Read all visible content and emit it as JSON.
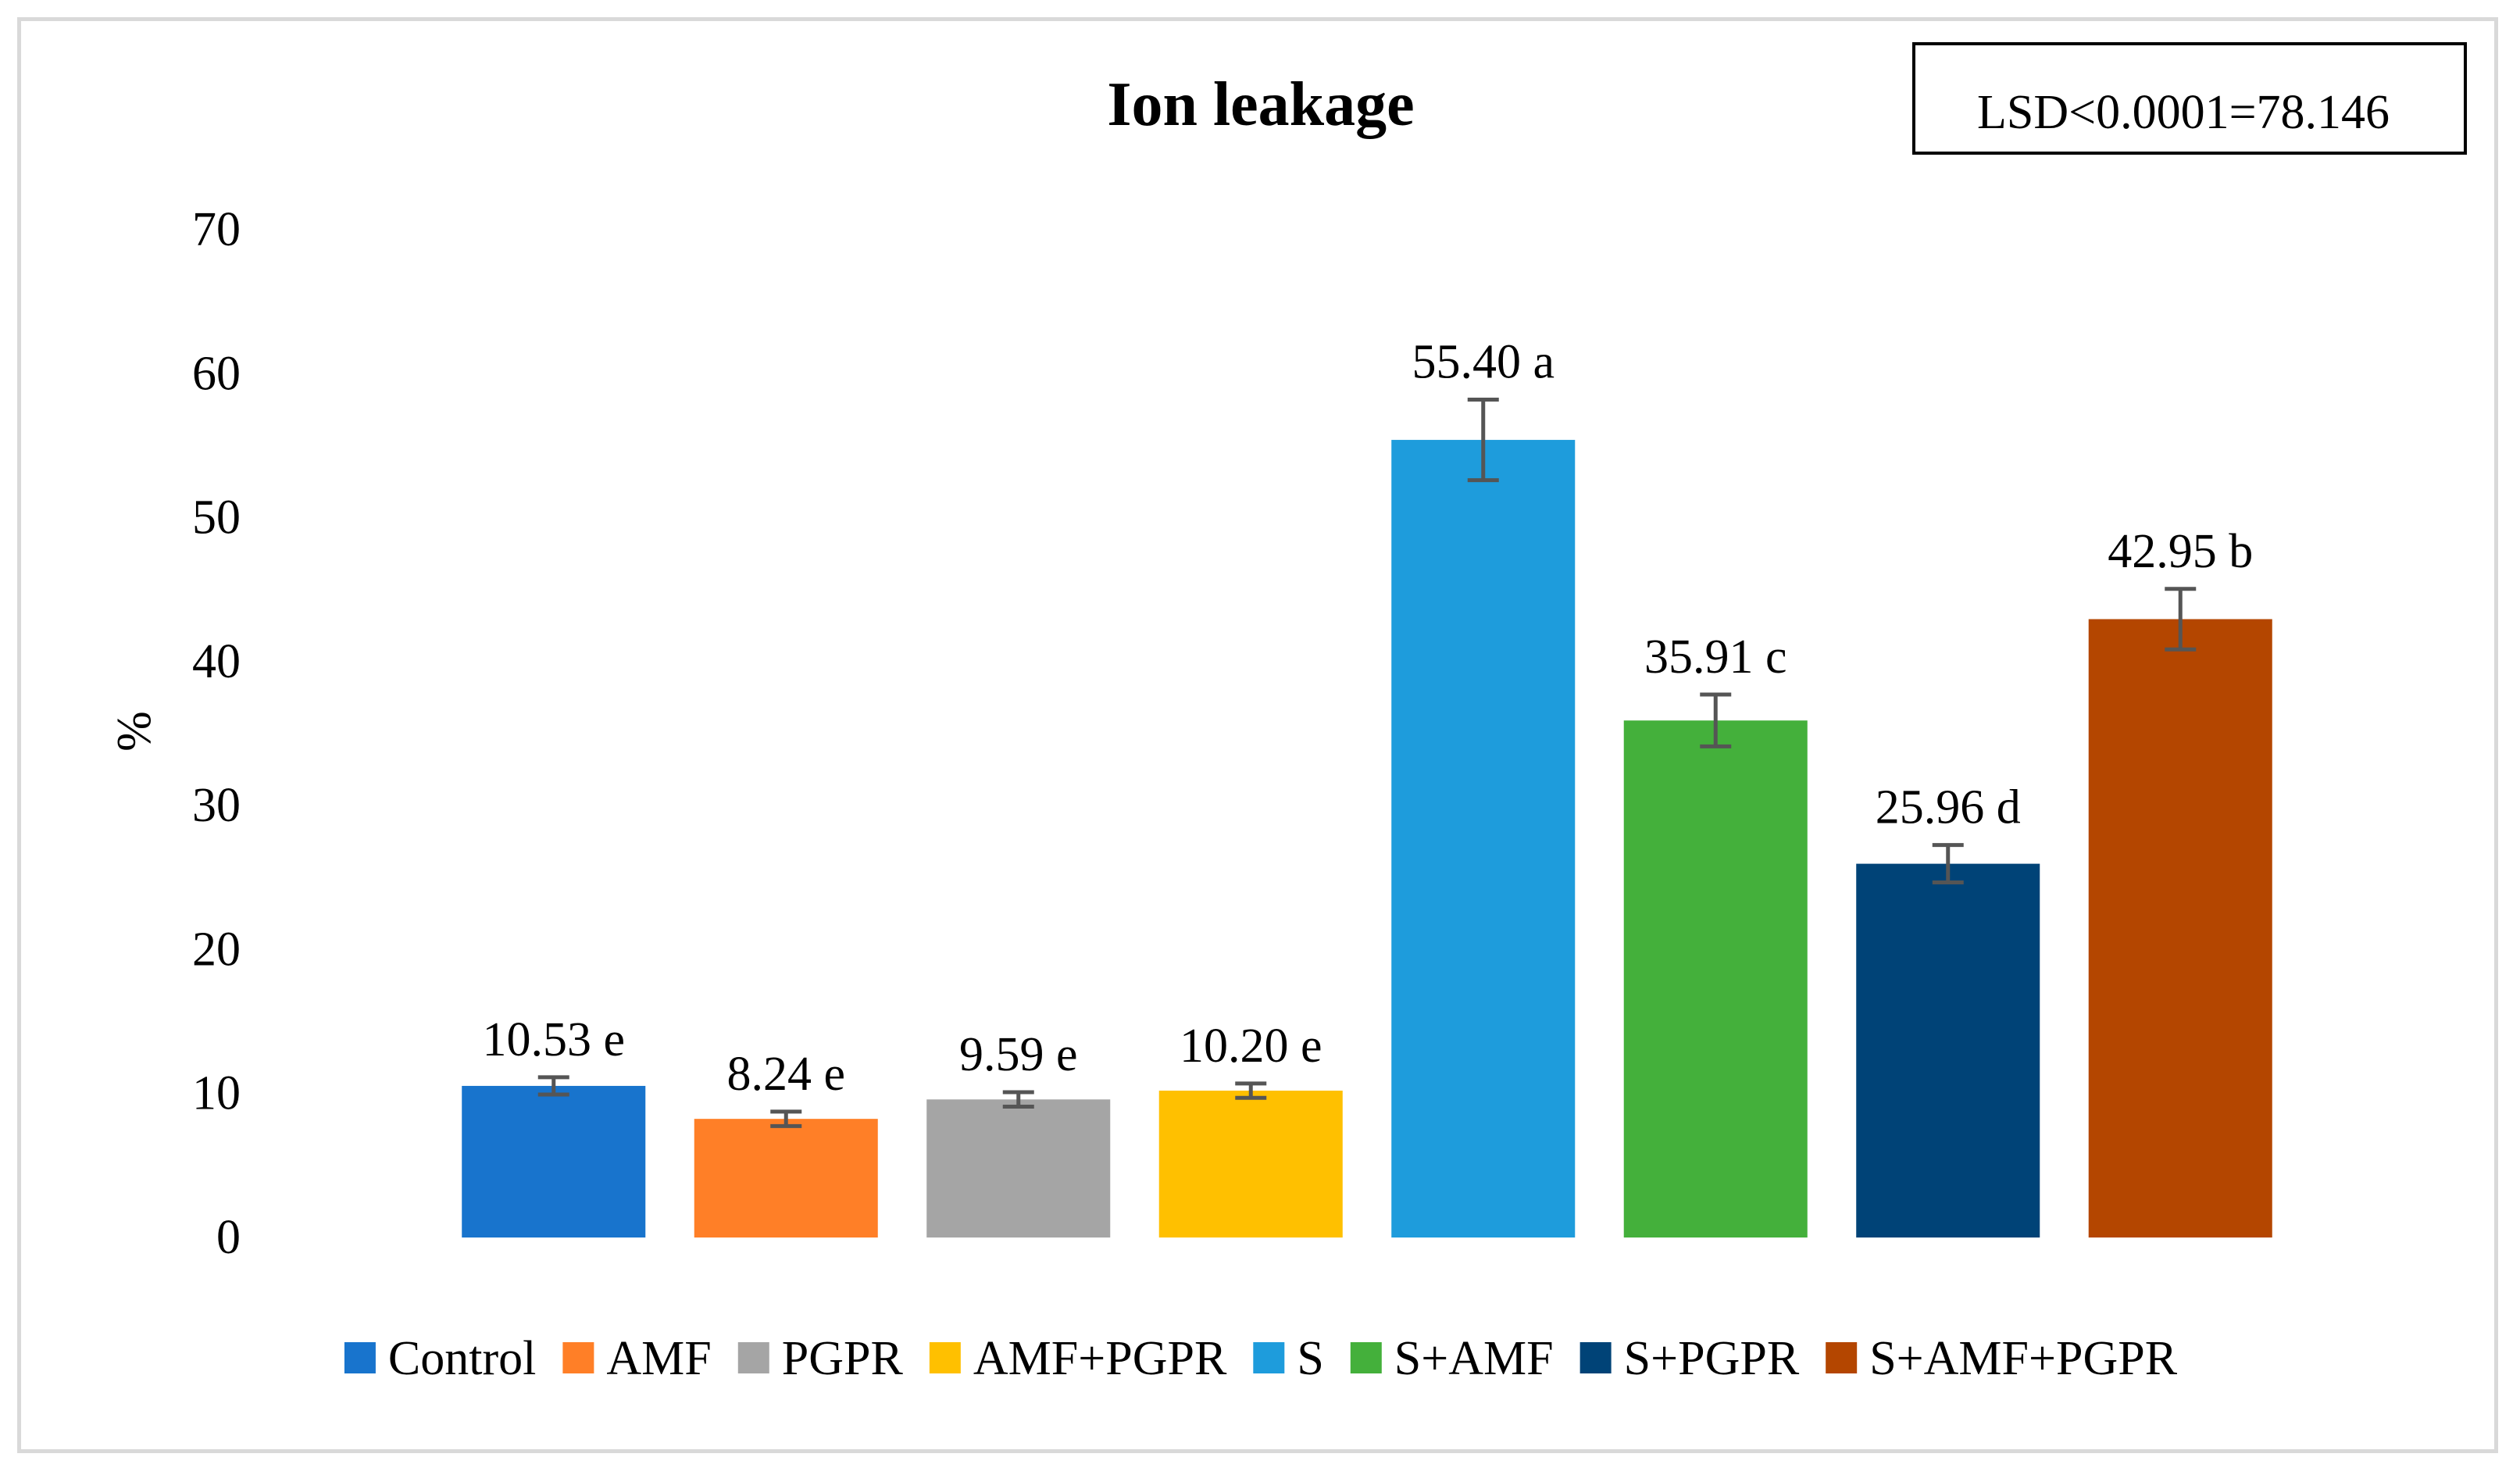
{
  "chart_data": {
    "type": "bar",
    "title": "Ion leakage",
    "annotation": "LSD<0.0001=78.146",
    "xlabel": "",
    "ylabel": "%",
    "ylim": [
      0,
      70
    ],
    "yticks": [
      0,
      10,
      20,
      30,
      40,
      50,
      60,
      70
    ],
    "grid": false,
    "legend_position": "bottom",
    "categories": [
      "Control",
      "AMF",
      "PGPR",
      "AMF+PGPR",
      "S",
      "S+AMF",
      "S+PGPR",
      "S+AMF+PGPR"
    ],
    "values": [
      10.53,
      8.24,
      9.59,
      10.2,
      55.4,
      35.91,
      25.96,
      42.95
    ],
    "errors": [
      0.6,
      0.5,
      0.5,
      0.5,
      2.8,
      1.8,
      1.3,
      2.1
    ],
    "value_labels": [
      "10.53 e",
      "8.24 e",
      "9.59 e",
      "10.20 e",
      "55.40 a",
      "35.91 c",
      "25.96 d",
      "42.95 b"
    ],
    "colors": [
      "#1874cd",
      "#ff7f27",
      "#a5a5a5",
      "#ffc000",
      "#1e9cdc",
      "#44b03b",
      "#004377",
      "#b44600"
    ]
  }
}
